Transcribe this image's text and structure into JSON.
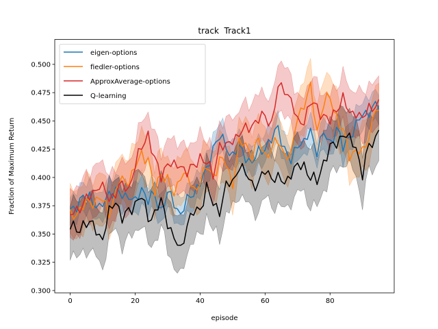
{
  "chart_data": {
    "type": "line",
    "title": "track  Track1",
    "xlabel": "episode",
    "ylabel": "Fraction of Maximum Return",
    "xlim": [
      -4.75,
      99.75
    ],
    "ylim": [
      0.298,
      0.522
    ],
    "xticks": [
      0,
      20,
      40,
      60,
      80
    ],
    "yticks": [
      0.3,
      0.325,
      0.35,
      0.375,
      0.4,
      0.425,
      0.45,
      0.475,
      0.5
    ],
    "grid": false,
    "legend_position": "top-left",
    "series": [
      {
        "name": "eigen-options",
        "color": "#1f77b4",
        "anchors": [
          [
            0,
            0.372
          ],
          [
            3,
            0.378
          ],
          [
            6,
            0.385
          ],
          [
            9,
            0.37
          ],
          [
            12,
            0.388
          ],
          [
            15,
            0.385
          ],
          [
            18,
            0.385
          ],
          [
            20,
            0.376
          ],
          [
            22,
            0.392
          ],
          [
            24,
            0.38
          ],
          [
            26,
            0.383
          ],
          [
            28,
            0.372
          ],
          [
            30,
            0.385
          ],
          [
            32,
            0.378
          ],
          [
            34,
            0.368
          ],
          [
            36,
            0.378
          ],
          [
            38,
            0.388
          ],
          [
            40,
            0.395
          ],
          [
            42,
            0.405
          ],
          [
            44,
            0.428
          ],
          [
            46,
            0.435
          ],
          [
            48,
            0.428
          ],
          [
            50,
            0.42
          ],
          [
            52,
            0.425
          ],
          [
            54,
            0.42
          ],
          [
            56,
            0.412
          ],
          [
            58,
            0.422
          ],
          [
            60,
            0.428
          ],
          [
            62,
            0.432
          ],
          [
            64,
            0.445
          ],
          [
            66,
            0.425
          ],
          [
            68,
            0.412
          ],
          [
            70,
            0.432
          ],
          [
            72,
            0.43
          ],
          [
            74,
            0.44
          ],
          [
            76,
            0.425
          ],
          [
            78,
            0.438
          ],
          [
            80,
            0.43
          ],
          [
            82,
            0.445
          ],
          [
            84,
            0.425
          ],
          [
            86,
            0.438
          ],
          [
            88,
            0.445
          ],
          [
            90,
            0.455
          ],
          [
            92,
            0.46
          ],
          [
            94,
            0.462
          ],
          [
            95,
            0.463
          ]
        ],
        "band": 0.013
      },
      {
        "name": "fiedler-options",
        "color": "#ff7f0e",
        "anchors": [
          [
            0,
            0.365
          ],
          [
            3,
            0.372
          ],
          [
            6,
            0.378
          ],
          [
            9,
            0.382
          ],
          [
            12,
            0.37
          ],
          [
            15,
            0.395
          ],
          [
            18,
            0.398
          ],
          [
            20,
            0.408
          ],
          [
            22,
            0.42
          ],
          [
            24,
            0.418
          ],
          [
            26,
            0.385
          ],
          [
            28,
            0.405
          ],
          [
            30,
            0.398
          ],
          [
            32,
            0.382
          ],
          [
            34,
            0.405
          ],
          [
            36,
            0.4
          ],
          [
            38,
            0.388
          ],
          [
            40,
            0.398
          ],
          [
            42,
            0.408
          ],
          [
            44,
            0.402
          ],
          [
            46,
            0.415
          ],
          [
            48,
            0.412
          ],
          [
            50,
            0.395
          ],
          [
            52,
            0.428
          ],
          [
            54,
            0.43
          ],
          [
            56,
            0.42
          ],
          [
            58,
            0.432
          ],
          [
            60,
            0.42
          ],
          [
            62,
            0.425
          ],
          [
            64,
            0.432
          ],
          [
            66,
            0.422
          ],
          [
            68,
            0.418
          ],
          [
            70,
            0.455
          ],
          [
            72,
            0.465
          ],
          [
            74,
            0.478
          ],
          [
            76,
            0.442
          ],
          [
            78,
            0.465
          ],
          [
            80,
            0.47
          ],
          [
            82,
            0.455
          ],
          [
            84,
            0.44
          ],
          [
            86,
            0.42
          ],
          [
            88,
            0.425
          ],
          [
            90,
            0.42
          ],
          [
            92,
            0.438
          ],
          [
            94,
            0.462
          ],
          [
            95,
            0.455
          ]
        ],
        "band": 0.022
      },
      {
        "name": "ApproxAverage-options",
        "color": "#d62728",
        "anchors": [
          [
            0,
            0.365
          ],
          [
            3,
            0.375
          ],
          [
            6,
            0.382
          ],
          [
            9,
            0.395
          ],
          [
            12,
            0.38
          ],
          [
            15,
            0.392
          ],
          [
            18,
            0.39
          ],
          [
            20,
            0.412
          ],
          [
            22,
            0.425
          ],
          [
            24,
            0.44
          ],
          [
            26,
            0.415
          ],
          [
            28,
            0.4
          ],
          [
            30,
            0.415
          ],
          [
            32,
            0.408
          ],
          [
            34,
            0.412
          ],
          [
            36,
            0.405
          ],
          [
            38,
            0.408
          ],
          [
            40,
            0.42
          ],
          [
            42,
            0.412
          ],
          [
            44,
            0.402
          ],
          [
            46,
            0.43
          ],
          [
            48,
            0.425
          ],
          [
            50,
            0.435
          ],
          [
            52,
            0.438
          ],
          [
            54,
            0.442
          ],
          [
            56,
            0.448
          ],
          [
            58,
            0.45
          ],
          [
            60,
            0.455
          ],
          [
            62,
            0.448
          ],
          [
            64,
            0.478
          ],
          [
            66,
            0.48
          ],
          [
            68,
            0.468
          ],
          [
            70,
            0.448
          ],
          [
            72,
            0.452
          ],
          [
            74,
            0.465
          ],
          [
            76,
            0.462
          ],
          [
            78,
            0.455
          ],
          [
            80,
            0.448
          ],
          [
            82,
            0.462
          ],
          [
            84,
            0.47
          ],
          [
            86,
            0.455
          ],
          [
            88,
            0.46
          ],
          [
            90,
            0.45
          ],
          [
            92,
            0.462
          ],
          [
            94,
            0.465
          ],
          [
            95,
            0.463
          ]
        ],
        "band": 0.022
      },
      {
        "name": "Q-learning",
        "color": "#000000",
        "anchors": [
          [
            0,
            0.357
          ],
          [
            2,
            0.352
          ],
          [
            4,
            0.36
          ],
          [
            6,
            0.358
          ],
          [
            8,
            0.355
          ],
          [
            10,
            0.345
          ],
          [
            12,
            0.368
          ],
          [
            14,
            0.382
          ],
          [
            16,
            0.362
          ],
          [
            18,
            0.37
          ],
          [
            20,
            0.378
          ],
          [
            22,
            0.382
          ],
          [
            24,
            0.365
          ],
          [
            26,
            0.368
          ],
          [
            28,
            0.378
          ],
          [
            30,
            0.362
          ],
          [
            32,
            0.345
          ],
          [
            34,
            0.335
          ],
          [
            36,
            0.36
          ],
          [
            38,
            0.368
          ],
          [
            40,
            0.372
          ],
          [
            42,
            0.392
          ],
          [
            44,
            0.375
          ],
          [
            46,
            0.372
          ],
          [
            48,
            0.392
          ],
          [
            50,
            0.395
          ],
          [
            52,
            0.412
          ],
          [
            54,
            0.402
          ],
          [
            56,
            0.395
          ],
          [
            58,
            0.395
          ],
          [
            60,
            0.405
          ],
          [
            62,
            0.402
          ],
          [
            64,
            0.398
          ],
          [
            66,
            0.395
          ],
          [
            68,
            0.405
          ],
          [
            70,
            0.408
          ],
          [
            72,
            0.412
          ],
          [
            74,
            0.4
          ],
          [
            76,
            0.395
          ],
          [
            78,
            0.415
          ],
          [
            80,
            0.425
          ],
          [
            82,
            0.43
          ],
          [
            84,
            0.44
          ],
          [
            86,
            0.432
          ],
          [
            88,
            0.428
          ],
          [
            90,
            0.402
          ],
          [
            92,
            0.428
          ],
          [
            94,
            0.435
          ],
          [
            95,
            0.445
          ]
        ],
        "band": 0.025
      }
    ]
  }
}
